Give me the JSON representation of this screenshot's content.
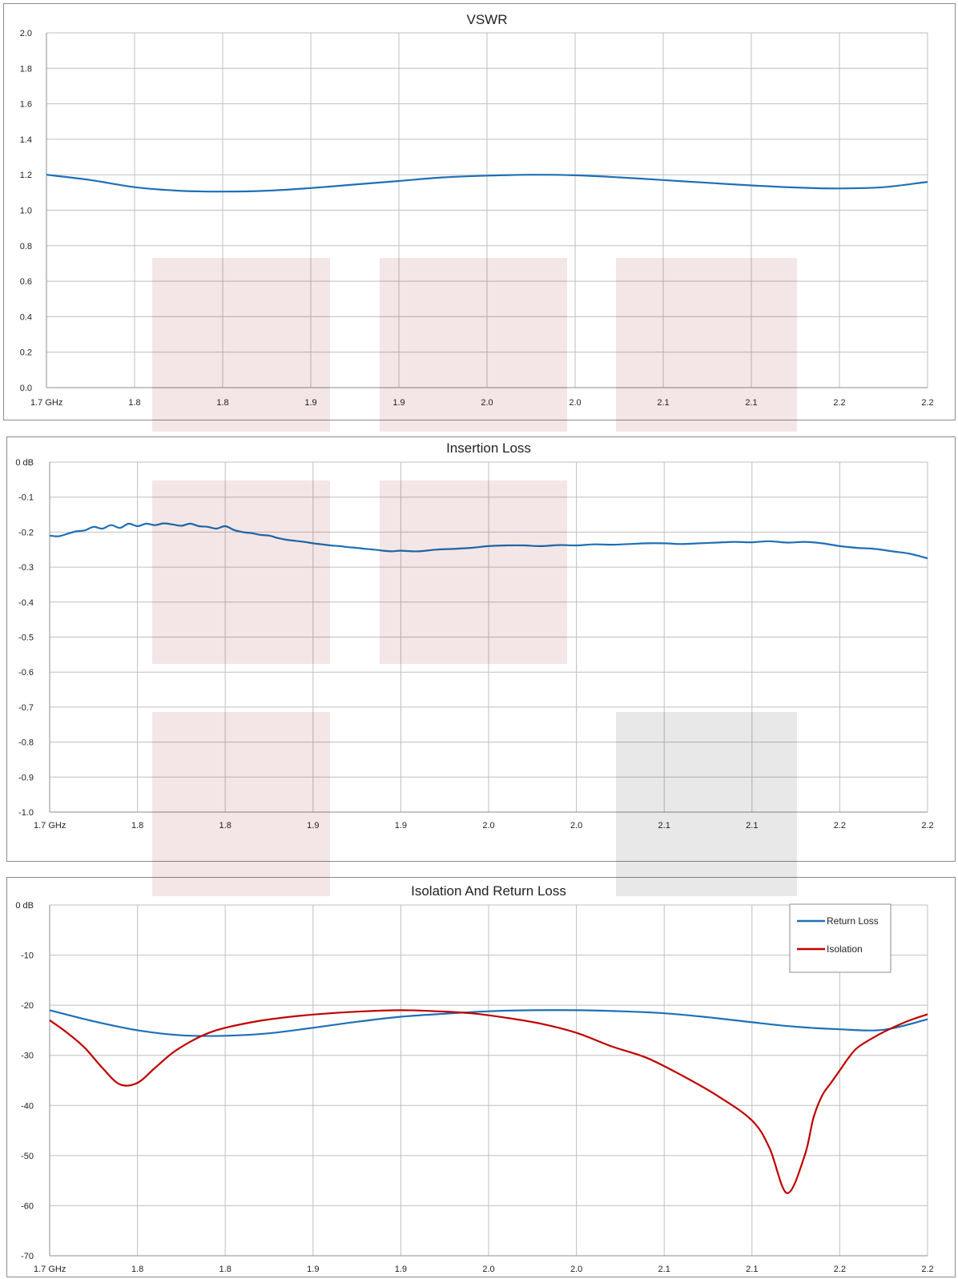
{
  "colors": {
    "return_loss": "#1f6fb6",
    "isolation": "#c00000",
    "vswr": "#1f6fb6",
    "insertion_loss": "#1f6fb6",
    "band_highlight": "#f2e2e2",
    "band_highlight_gray": "#e4e4e4",
    "grid": "#bfbfbf"
  },
  "chart_data": [
    {
      "type": "line",
      "title": "VSWR",
      "xlabel": "",
      "ylabel": "",
      "ylim": [
        0,
        2
      ],
      "grid": true,
      "x_tick_labels": [
        "1.7 GHz",
        "1.8",
        "1.8",
        "1.9",
        "1.9",
        "2.0",
        "2.0",
        "2.1",
        "2.1",
        "2.2",
        "2.2"
      ],
      "y_tick_labels": [
        "0.0",
        "0.2",
        "0.4",
        "0.6",
        "0.8",
        "1.0",
        "1.2",
        "1.4",
        "1.6",
        "1.8",
        "2.0"
      ],
      "series": [
        {
          "x": [
            1.7,
            1.725,
            1.75,
            1.775,
            1.8,
            1.825,
            1.85,
            1.875,
            1.9,
            1.925,
            1.95,
            1.975,
            2.0,
            2.025,
            2.05,
            2.075,
            2.1,
            2.125,
            2.15,
            2.175,
            2.2
          ],
          "values": [
            1.2,
            1.17,
            1.13,
            1.11,
            1.105,
            1.11,
            1.125,
            1.145,
            1.165,
            1.185,
            1.195,
            1.2,
            1.197,
            1.185,
            1.17,
            1.155,
            1.14,
            1.128,
            1.123,
            1.13,
            1.16
          ]
        }
      ]
    },
    {
      "type": "line",
      "title": "Insertion Loss",
      "xlabel": "",
      "ylabel": "",
      "ylim": [
        -1.0,
        0
      ],
      "grid": true,
      "x_tick_labels": [
        "1.7 GHz",
        "1.8",
        "1.8",
        "1.9",
        "1.9",
        "2.0",
        "2.0",
        "2.1",
        "2.1",
        "2.2",
        "2.2"
      ],
      "y_tick_labels": [
        "-1.0",
        "-0.9",
        "-0.8",
        "-0.7",
        "-0.6",
        "-0.5",
        "-0.4",
        "-0.3",
        "-0.2",
        "-0.1",
        "0 dB"
      ],
      "series": [
        {
          "x": [
            1.7,
            1.705,
            1.71,
            1.715,
            1.72,
            1.725,
            1.73,
            1.735,
            1.74,
            1.745,
            1.75,
            1.755,
            1.76,
            1.765,
            1.77,
            1.775,
            1.78,
            1.785,
            1.79,
            1.795,
            1.8,
            1.805,
            1.81,
            1.815,
            1.82,
            1.825,
            1.83,
            1.835,
            1.84,
            1.845,
            1.85,
            1.855,
            1.86,
            1.865,
            1.87,
            1.875,
            1.88,
            1.885,
            1.89,
            1.895,
            1.9,
            1.91,
            1.92,
            1.93,
            1.94,
            1.95,
            1.96,
            1.97,
            1.98,
            1.99,
            2.0,
            2.01,
            2.02,
            2.03,
            2.04,
            2.05,
            2.06,
            2.07,
            2.08,
            2.09,
            2.1,
            2.11,
            2.12,
            2.13,
            2.14,
            2.15,
            2.16,
            2.17,
            2.18,
            2.19,
            2.2
          ],
          "values": [
            -0.21,
            -0.212,
            -0.205,
            -0.198,
            -0.195,
            -0.185,
            -0.19,
            -0.18,
            -0.188,
            -0.176,
            -0.183,
            -0.176,
            -0.18,
            -0.175,
            -0.178,
            -0.182,
            -0.176,
            -0.183,
            -0.185,
            -0.19,
            -0.183,
            -0.194,
            -0.2,
            -0.203,
            -0.208,
            -0.21,
            -0.217,
            -0.222,
            -0.225,
            -0.228,
            -0.232,
            -0.235,
            -0.238,
            -0.24,
            -0.243,
            -0.245,
            -0.248,
            -0.25,
            -0.253,
            -0.255,
            -0.253,
            -0.255,
            -0.25,
            -0.248,
            -0.245,
            -0.24,
            -0.238,
            -0.238,
            -0.24,
            -0.237,
            -0.238,
            -0.235,
            -0.236,
            -0.234,
            -0.232,
            -0.232,
            -0.234,
            -0.232,
            -0.23,
            -0.228,
            -0.229,
            -0.226,
            -0.23,
            -0.228,
            -0.232,
            -0.24,
            -0.245,
            -0.248,
            -0.255,
            -0.262,
            -0.275
          ]
        }
      ]
    },
    {
      "type": "line",
      "title": "Isolation And Return Loss",
      "xlabel": "",
      "ylabel": "",
      "ylim": [
        -70,
        0
      ],
      "grid": true,
      "legend": "top-right",
      "x_tick_labels": [
        "1.7 GHz",
        "1.8",
        "1.8",
        "1.9",
        "1.9",
        "2.0",
        "2.0",
        "2.1",
        "2.1",
        "2.2",
        "2.2"
      ],
      "y_tick_labels": [
        "-70",
        "-60",
        "-50",
        "-40",
        "-30",
        "-20",
        "-10",
        "0 dB"
      ],
      "series": [
        {
          "name": "Return Loss",
          "x": [
            1.7,
            1.725,
            1.75,
            1.775,
            1.8,
            1.825,
            1.85,
            1.875,
            1.9,
            1.925,
            1.95,
            1.975,
            2.0,
            2.025,
            2.05,
            2.075,
            2.1,
            2.125,
            2.15,
            2.175,
            2.2
          ],
          "values": [
            -21,
            -23.2,
            -25,
            -26,
            -26.1,
            -25.6,
            -24.5,
            -23.3,
            -22.3,
            -21.7,
            -21.2,
            -21,
            -21,
            -21.2,
            -21.6,
            -22.4,
            -23.4,
            -24.3,
            -24.8,
            -24.9,
            -22.8
          ]
        },
        {
          "name": "Isolation",
          "x": [
            1.7,
            1.71,
            1.72,
            1.73,
            1.74,
            1.75,
            1.76,
            1.77,
            1.78,
            1.79,
            1.8,
            1.82,
            1.84,
            1.86,
            1.88,
            1.9,
            1.92,
            1.94,
            1.96,
            1.98,
            2.0,
            2.02,
            2.04,
            2.06,
            2.08,
            2.1,
            2.11,
            2.12,
            2.13,
            2.135,
            2.14,
            2.145,
            2.15,
            2.155,
            2.16,
            2.17,
            2.18,
            2.19,
            2.2
          ],
          "values": [
            -23,
            -25.5,
            -28.5,
            -32.5,
            -35.8,
            -35.5,
            -32.5,
            -29.5,
            -27.3,
            -25.6,
            -24.5,
            -23.1,
            -22.2,
            -21.6,
            -21.2,
            -21,
            -21.2,
            -21.6,
            -22.5,
            -23.7,
            -25.5,
            -28.2,
            -30.5,
            -34,
            -38,
            -43,
            -48.5,
            -57.5,
            -50,
            -42.5,
            -38,
            -35.5,
            -33,
            -30.5,
            -28.5,
            -26.3,
            -24.5,
            -23,
            -21.8
          ]
        }
      ]
    }
  ]
}
